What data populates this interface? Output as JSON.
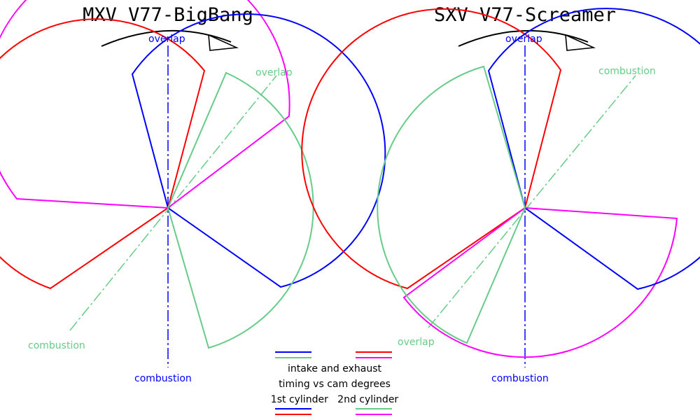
{
  "colors": {
    "intake_1st": "#0000ff",
    "exhaust_1st": "#ff0000",
    "intake_2nd": "#66cc88",
    "exhaust_2nd": "#ff00ff",
    "text": "#000000",
    "background": "#ffffff"
  },
  "rotation_arrow": "clockwise",
  "diagrams": [
    {
      "title": "MXV  V77-BigBang",
      "labels": {
        "overlap_1st": "overlap",
        "combustion_1st": "combustion",
        "overlap_2nd": "overlap",
        "combustion_2nd": "combustion"
      }
    },
    {
      "title": "SXV  V77-Screamer",
      "labels": {
        "overlap_1st": "overlap",
        "combustion_1st": "combustion",
        "combustion_2nd": "combustion",
        "overlap_2nd": "overlap"
      }
    }
  ],
  "legend": {
    "line1": "intake and exhaust",
    "line2": "timing vs cam degrees",
    "line3": "1st cylinder   2nd cylinder"
  }
}
